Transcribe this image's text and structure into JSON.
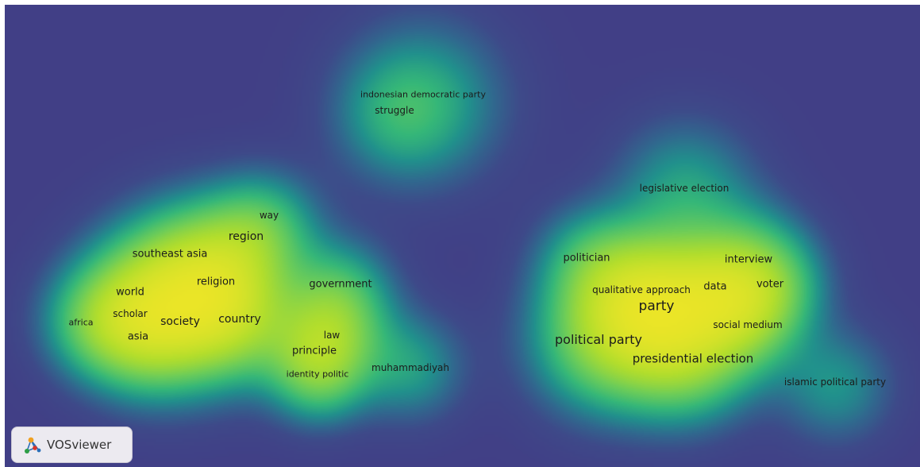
{
  "brand": {
    "name": "VOSviewer",
    "logo_icon": "vosviewer-logo-icon"
  },
  "colors": {
    "background": "#413f86",
    "low_density": "#1fa187",
    "mid_density": "#6ccd5a",
    "high_density": "#fde725"
  },
  "terms": [
    {
      "label": "indonesian democratic party"
    },
    {
      "label": "struggle"
    },
    {
      "label": "legislative election"
    },
    {
      "label": "way"
    },
    {
      "label": "region"
    },
    {
      "label": "southeast asia"
    },
    {
      "label": "religion"
    },
    {
      "label": "world"
    },
    {
      "label": "scholar"
    },
    {
      "label": "africa"
    },
    {
      "label": "society"
    },
    {
      "label": "country"
    },
    {
      "label": "asia"
    },
    {
      "label": "government"
    },
    {
      "label": "law"
    },
    {
      "label": "principle"
    },
    {
      "label": "identity politic"
    },
    {
      "label": "muhammadiyah"
    },
    {
      "label": "politician"
    },
    {
      "label": "interview"
    },
    {
      "label": "qualitative approach"
    },
    {
      "label": "data"
    },
    {
      "label": "voter"
    },
    {
      "label": "party"
    },
    {
      "label": "social medium"
    },
    {
      "label": "political party"
    },
    {
      "label": "presidential election"
    },
    {
      "label": "islamic political party"
    }
  ]
}
